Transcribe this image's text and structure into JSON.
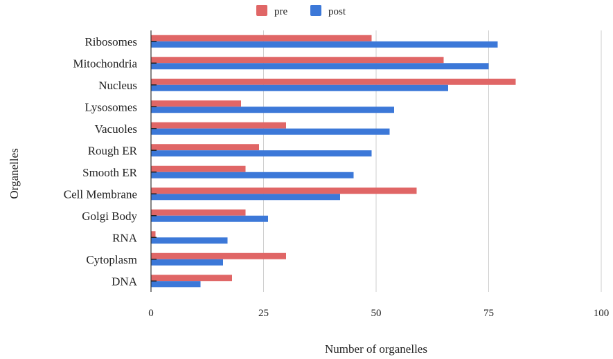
{
  "chart_data": {
    "type": "bar",
    "orientation": "horizontal",
    "categories": [
      "Ribosomes",
      "Mitochondria",
      "Nucleus",
      "Lysosomes",
      "Vacuoles",
      "Rough ER",
      "Smooth ER",
      "Cell Membrane",
      "Golgi Body",
      "RNA",
      "Cytoplasm",
      "DNA"
    ],
    "series": [
      {
        "name": "pre",
        "color": "#e06666",
        "values": [
          49,
          65,
          81,
          20,
          30,
          24,
          21,
          59,
          21,
          1,
          30,
          18
        ]
      },
      {
        "name": "post",
        "color": "#3c78d8",
        "values": [
          77,
          75,
          66,
          54,
          53,
          49,
          45,
          42,
          26,
          17,
          16,
          11
        ]
      }
    ],
    "xlabel": "Number of organelles",
    "ylabel": "Organelles",
    "xlim": [
      0,
      100
    ],
    "xticks": [
      "0",
      "25",
      "50",
      "75",
      "100"
    ],
    "grid": true,
    "legend_position": "top-center"
  }
}
